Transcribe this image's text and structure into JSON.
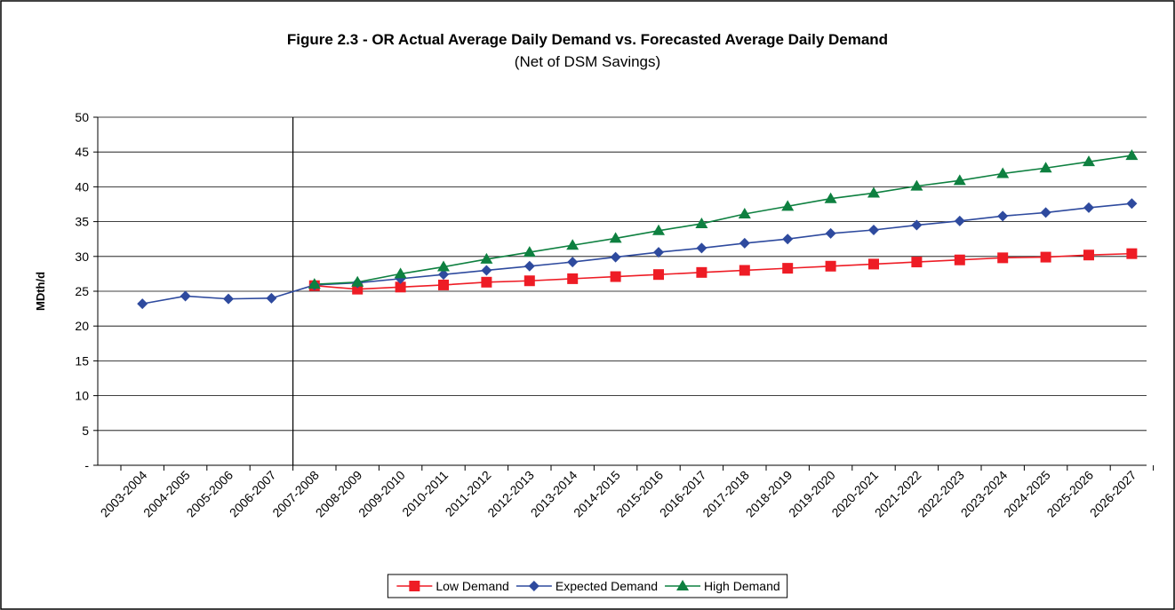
{
  "chart_data": {
    "type": "line",
    "title": "Figure 2.3 - OR Actual Average Daily Demand vs. Forecasted Average Daily Demand",
    "subtitle": "(Net of DSM Savings)",
    "y_label": "MDth/d",
    "categories": [
      "2003-2004",
      "2004-2005",
      "2005-2006",
      "2006-2007",
      "2007-2008",
      "2008-2009",
      "2009-2010",
      "2010-2011",
      "2011-2012",
      "2012-2013",
      "2013-2014",
      "2014-2015",
      "2015-2016",
      "2016-2017",
      "2017-2018",
      "2018-2019",
      "2019-2020",
      "2020-2021",
      "2021-2022",
      "2022-2023",
      "2023-2024",
      "2024-2025",
      "2025-2026",
      "2026-2027"
    ],
    "series": [
      {
        "name": "Low Demand",
        "color": "#ee1c25",
        "marker": "square",
        "values": [
          null,
          null,
          null,
          null,
          25.8,
          25.3,
          25.6,
          25.9,
          26.3,
          26.5,
          26.8,
          27.1,
          27.4,
          27.7,
          28.0,
          28.3,
          28.6,
          28.9,
          29.2,
          29.5,
          29.8,
          29.9,
          30.2,
          30.4
        ]
      },
      {
        "name": "Expected Demand",
        "color": "#2e4a9e",
        "marker": "diamond",
        "values": [
          23.2,
          24.3,
          23.9,
          24.0,
          25.9,
          26.2,
          26.8,
          27.4,
          28.0,
          28.6,
          29.2,
          29.9,
          30.6,
          31.2,
          31.9,
          32.5,
          33.3,
          33.8,
          34.5,
          35.1,
          35.8,
          36.3,
          37.0,
          37.6
        ]
      },
      {
        "name": "High Demand",
        "color": "#0e8040",
        "marker": "triangle",
        "values": [
          null,
          null,
          null,
          null,
          26.0,
          26.3,
          27.5,
          28.5,
          29.6,
          30.6,
          31.6,
          32.6,
          33.7,
          34.7,
          36.1,
          37.2,
          38.3,
          39.1,
          40.1,
          40.9,
          41.9,
          42.7,
          43.6,
          44.5
        ]
      }
    ],
    "ylim": [
      0,
      50
    ],
    "yticks": [
      {
        "value": 0,
        "label": "-"
      },
      5,
      10,
      15,
      20,
      25,
      30,
      35,
      40,
      45,
      50
    ],
    "grid": true,
    "legend": "bottom"
  }
}
